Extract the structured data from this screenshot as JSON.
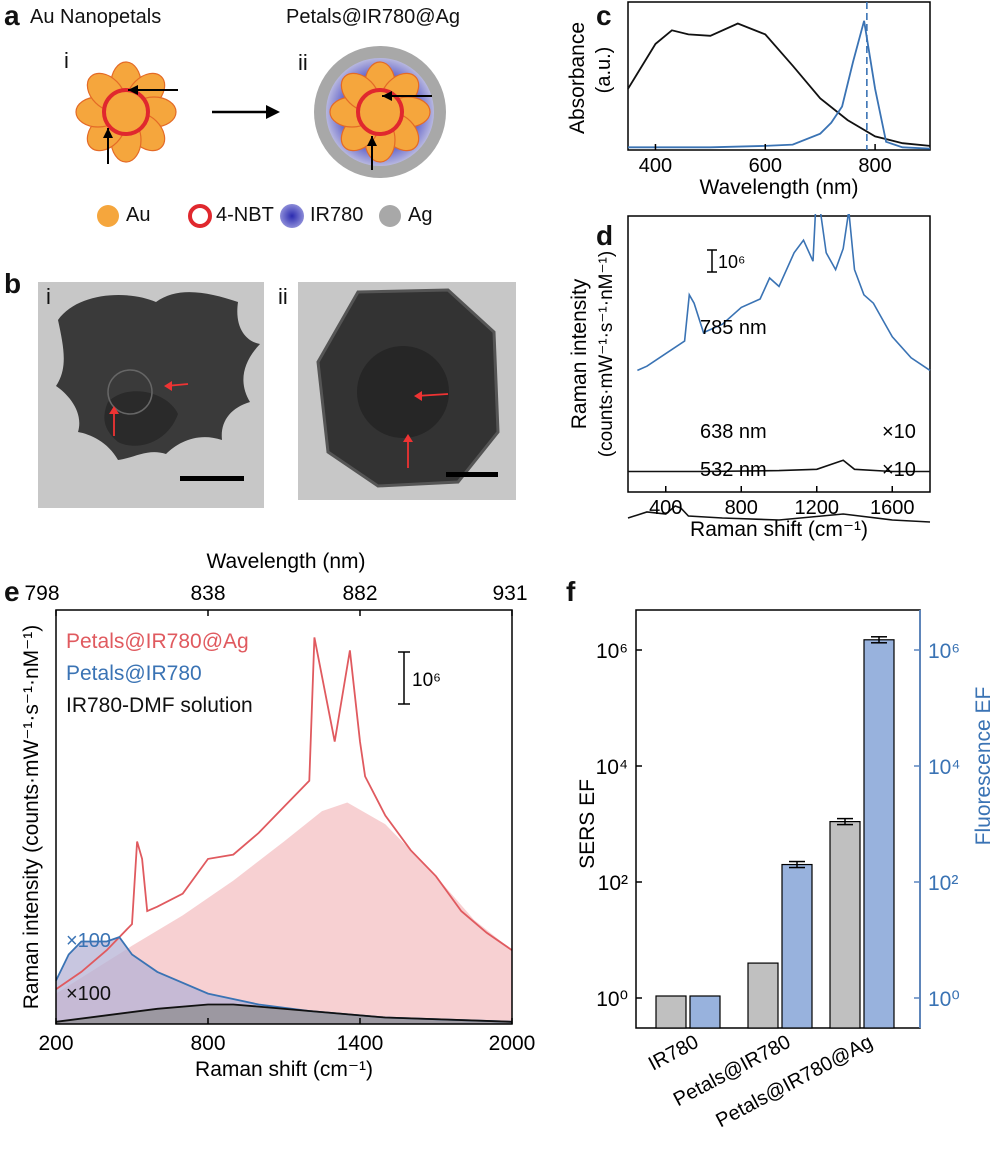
{
  "panel_a": {
    "label": "a",
    "left_title": "Au Nanopetals",
    "right_title": "Petals@IR780@Ag",
    "left_roman": "i",
    "right_roman": "ii",
    "legend": [
      {
        "label": "Au",
        "color": "#f5a63d"
      },
      {
        "label": "4-NBT",
        "color": "#e0282e"
      },
      {
        "label": "IR780",
        "color": "#3a3ab8"
      },
      {
        "label": "Ag",
        "color": "#a8a8a8"
      }
    ]
  },
  "panel_b": {
    "label": "b",
    "left_roman": "i",
    "right_roman": "ii"
  },
  "panel_c": {
    "label": "c",
    "ylabel_main": "Absorbance",
    "ylabel_unit": "(a.u.)",
    "xlabel": "Wavelength (nm)",
    "xticks": [
      "400",
      "600",
      "800"
    ]
  },
  "panel_d": {
    "label": "d",
    "ylabel_main": "Raman intensity",
    "ylabel_unit": "(counts·mW⁻¹·s⁻¹·nM⁻¹)",
    "xlabel": "Raman shift (cm⁻¹)",
    "xticks": [
      "400",
      "800",
      "1200",
      "1600"
    ],
    "scale": "10⁶",
    "lines": [
      {
        "label": "785 nm",
        "mult": ""
      },
      {
        "label": "638 nm",
        "mult": "×10"
      },
      {
        "label": "532 nm",
        "mult": "×10"
      }
    ]
  },
  "panel_e": {
    "label": "e",
    "top_axis_title": "Wavelength (nm)",
    "top_ticks": [
      "798",
      "838",
      "882",
      "931"
    ],
    "xticks": [
      "200",
      "800",
      "1400",
      "2000"
    ],
    "xlabel": "Raman shift (cm⁻¹)",
    "ylabel": "Raman intensity (counts·mW⁻¹·s⁻¹·nM⁻¹)",
    "scale": "10⁶",
    "legend": [
      {
        "label": "Petals@IR780@Ag",
        "color": "#e05a5f"
      },
      {
        "label": "Petals@IR780",
        "color": "#3a73b4"
      },
      {
        "label": "IR780-DMF solution",
        "color": "#111111"
      }
    ],
    "mult_blue": "×100",
    "mult_black": "×100"
  },
  "panel_f": {
    "label": "f",
    "ylabel_left": "SERS EF",
    "ylabel_right": "Fluorescence EF",
    "left_ticks": [
      "10⁶",
      "10⁴",
      "10²",
      "10⁰"
    ],
    "right_ticks": [
      "10⁶",
      "10⁴",
      "10²",
      "10⁰"
    ]
  },
  "chart_data": [
    {
      "panel": "c",
      "type": "line",
      "xlabel": "Wavelength (nm)",
      "ylabel": "Absorbance (a.u.)",
      "xlim": [
        350,
        900
      ],
      "series": [
        {
          "color": "#111111",
          "x": [
            350,
            400,
            430,
            460,
            500,
            550,
            600,
            650,
            700,
            750,
            800,
            850,
            900
          ],
          "y": [
            0.45,
            0.78,
            0.88,
            0.85,
            0.84,
            0.93,
            0.85,
            0.62,
            0.38,
            0.22,
            0.1,
            0.05,
            0.03
          ]
        },
        {
          "color": "#3a73b4",
          "x": [
            350,
            400,
            500,
            600,
            650,
            700,
            720,
            740,
            760,
            780,
            800,
            820,
            850,
            900
          ],
          "y": [
            0.02,
            0.02,
            0.02,
            0.03,
            0.04,
            0.12,
            0.2,
            0.32,
            0.65,
            0.95,
            0.45,
            0.06,
            0.02,
            0.01
          ]
        }
      ],
      "annotations": [
        {
          "type": "vline",
          "x": 785,
          "style": "dashed",
          "color": "#3a73b4"
        }
      ]
    },
    {
      "panel": "d",
      "type": "line",
      "xlabel": "Raman shift (cm⁻¹)",
      "ylabel": "Raman intensity (counts·mW⁻¹·s⁻¹·nM⁻¹)",
      "xlim": [
        200,
        1800
      ],
      "series": [
        {
          "name": "785 nm",
          "color": "#3a73b4",
          "x": [
            250,
            300,
            400,
            500,
            525,
            550,
            600,
            700,
            800,
            900,
            950,
            1000,
            1080,
            1130,
            1180,
            1200,
            1250,
            1300,
            1340,
            1370,
            1400,
            1450,
            1500,
            1550,
            1600,
            1700,
            1800
          ],
          "y": [
            0.8,
            0.9,
            1.2,
            1.5,
            2.6,
            2.4,
            1.7,
            1.9,
            2.3,
            2.5,
            3.0,
            2.8,
            3.6,
            3.9,
            3.4,
            5.2,
            3.6,
            3.2,
            3.7,
            4.6,
            3.2,
            2.6,
            2.4,
            2.0,
            1.6,
            1.1,
            0.8
          ]
        },
        {
          "name": "638 nm",
          "color": "#111111",
          "x": [
            200,
            600,
            1000,
            1200,
            1340,
            1400,
            1600,
            1800
          ],
          "y": [
            0.1,
            0.1,
            0.12,
            0.15,
            0.35,
            0.15,
            0.1,
            0.1
          ]
        },
        {
          "name": "532 nm",
          "color": "#111111",
          "x": [
            200,
            300,
            400,
            450,
            480,
            520,
            700,
            1000,
            1340,
            1600,
            1800
          ],
          "y": [
            0.15,
            0.3,
            0.25,
            0.45,
            0.4,
            0.2,
            0.15,
            0.1,
            0.25,
            0.1,
            0.05
          ]
        }
      ]
    },
    {
      "panel": "e",
      "type": "line",
      "xlabel": "Raman shift (cm⁻¹)",
      "ylabel": "Raman intensity (counts·mW⁻¹·s⁻¹·nM⁻¹)",
      "xlim": [
        200,
        2000
      ],
      "series": [
        {
          "name": "Petals@IR780@Ag",
          "color": "#e05a5f",
          "x": [
            200,
            300,
            400,
            500,
            520,
            540,
            560,
            600,
            700,
            800,
            900,
            1000,
            1100,
            1200,
            1220,
            1300,
            1360,
            1400,
            1420,
            1500,
            1600,
            1700,
            1800,
            1900,
            2000
          ],
          "y": [
            0.8,
            1.2,
            1.7,
            2.3,
            4.2,
            3.8,
            2.6,
            2.7,
            3.0,
            3.8,
            3.9,
            4.4,
            5.0,
            5.6,
            8.9,
            6.5,
            8.6,
            6.5,
            5.7,
            4.8,
            4.0,
            3.4,
            2.6,
            2.1,
            1.7
          ]
        },
        {
          "name": "Petals@IR780",
          "color": "#3a73b4",
          "x": [
            200,
            250,
            300,
            400,
            450,
            500,
            600,
            800,
            1000,
            1200,
            1500,
            2000
          ],
          "y": [
            1.0,
            1.6,
            1.9,
            1.9,
            2.0,
            1.6,
            1.2,
            0.7,
            0.45,
            0.3,
            0.15,
            0.05
          ]
        },
        {
          "name": "IR780-DMF solution",
          "color": "#111111",
          "x": [
            200,
            400,
            600,
            800,
            900,
            1000,
            1200,
            1500,
            2000
          ],
          "y": [
            0.05,
            0.2,
            0.35,
            0.45,
            0.45,
            0.4,
            0.3,
            0.15,
            0.05
          ]
        }
      ]
    },
    {
      "panel": "f",
      "type": "bar",
      "categories": [
        "IR780",
        "Petals@IR780",
        "Petals@IR780@Ag"
      ],
      "yscale": "log",
      "ylim": [
        1,
        10000000
      ],
      "series": [
        {
          "name": "SERS EF",
          "color": "#c0c0c0",
          "values": [
            1,
            4,
            1100
          ]
        },
        {
          "name": "Fluorescence EF",
          "color": "#98b2dd",
          "values": [
            1,
            200,
            1500000
          ]
        }
      ]
    }
  ]
}
